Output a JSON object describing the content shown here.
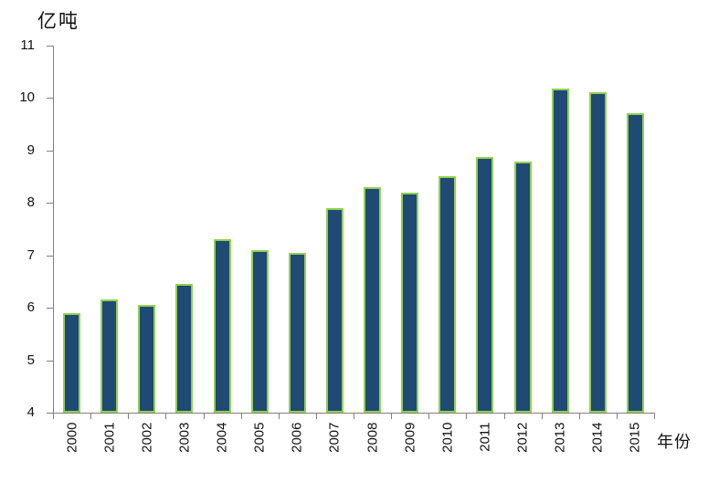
{
  "chart_data": {
    "type": "bar",
    "title": "",
    "ylabel": "亿吨",
    "xlabel": "年份",
    "categories": [
      "2000",
      "2001",
      "2002",
      "2003",
      "2004",
      "2005",
      "2006",
      "2007",
      "2008",
      "2009",
      "2010",
      "2011",
      "2012",
      "2013",
      "2014",
      "2015"
    ],
    "values": [
      5.9,
      6.15,
      6.05,
      6.45,
      7.3,
      7.1,
      7.05,
      7.9,
      8.3,
      8.2,
      8.5,
      8.87,
      8.78,
      10.18,
      10.1,
      9.7
    ],
    "ylim": [
      4,
      11
    ],
    "yticks": [
      4,
      5,
      6,
      7,
      8,
      9,
      10,
      11
    ],
    "grid": false,
    "legend": "none",
    "x_tick_label_rotation": -90,
    "bar_fill_color": "#1F4A74",
    "bar_border_color": "#92D050",
    "axis_color": "#808080",
    "text_color": "#111111",
    "background_color": "#FFFFFF"
  }
}
